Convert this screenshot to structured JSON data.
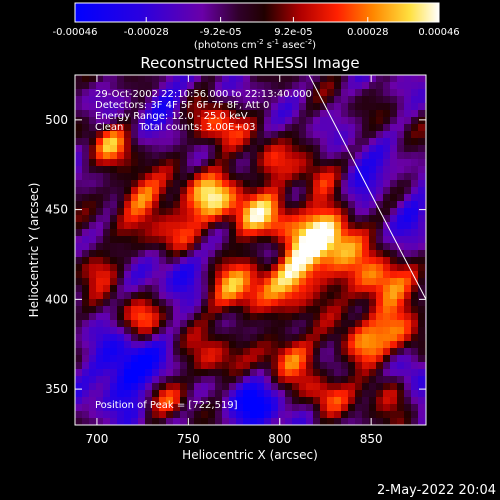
{
  "chart_data": {
    "type": "heatmap",
    "title": "Reconstructed RHESSI Image",
    "colorbar": {
      "colormap": "blue-purple-red-yellow-white",
      "range": [
        -0.00046,
        0.00046
      ],
      "ticks": [
        "-0.00046",
        "-0.00028",
        "-9.2e-05",
        "9.2e-05",
        "0.00028",
        "0.00046"
      ],
      "label_parts": {
        "pre": "(photons cm",
        "sup1": "-2",
        "mid1": " s",
        "sup2": "-1",
        "mid2": " asec",
        "sup3": "-2",
        "post": ")"
      }
    },
    "xlabel": "Heliocentric X (arcsec)",
    "ylabel": "Heliocentric Y (arcsec)",
    "xlim": [
      688,
      880
    ],
    "ylim": [
      330,
      525
    ],
    "xticks": [
      700,
      750,
      800,
      850
    ],
    "yticks": [
      350,
      400,
      450,
      500
    ],
    "annotations": [
      "29-Oct-2002 22:10:56.000 to 22:13:40.000",
      "Detectors: 3F 4F 5F 6F 7F 8F, Att 0",
      "Energy Range: 12.0 - 25.0 keV",
      "Clean     Total counts: 3.00E+03"
    ],
    "peak_label": "Position of Peak = [722,519]",
    "limb_line": [
      [
        816,
        525
      ],
      [
        880,
        400
      ]
    ],
    "grid": false
  },
  "footer": {
    "date": "2-May-2022 20:04"
  }
}
